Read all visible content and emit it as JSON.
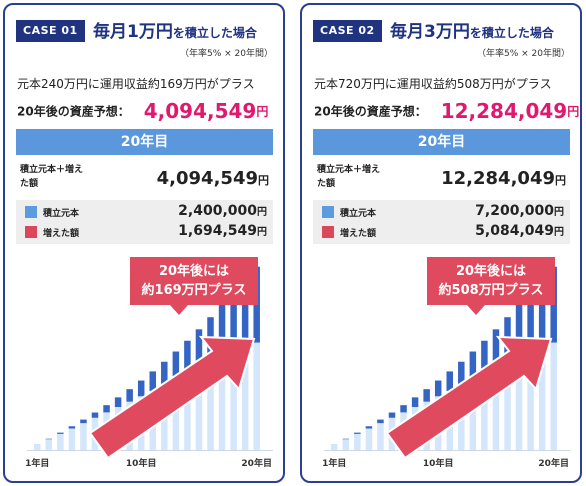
{
  "colors": {
    "principal": "#5b9bde",
    "gain": "#d9495b",
    "principal_bar": "#d3e6fb",
    "gain_bar": "#3565c4"
  },
  "cases": [
    {
      "badge": "CASE 01",
      "title_big": "毎月1万円",
      "title_small": "を積立した場合",
      "subnote": "（年率5% × 20年間）",
      "description": "元本240万円に運用収益約169万円がプラス",
      "forecast_label": "20年後の資産予想：",
      "forecast_value": "4,094,549",
      "yen": "円",
      "year_label": "20年目",
      "total_label": "積立元本＋増えた額",
      "total_value": "4,094,549",
      "principal_label": "積立元本",
      "principal_value": "2,400,000",
      "gain_label": "増えた額",
      "gain_value": "1,694,549",
      "callout": "20年後には\n約169万円プラス",
      "x_ticks": [
        "1年目",
        "10年目",
        "20年目"
      ]
    },
    {
      "badge": "CASE 02",
      "title_big": "毎月3万円",
      "title_small": "を積立した場合",
      "subnote": "（年率5% × 20年間）",
      "description": "元本720万円に運用収益約508万円がプラス",
      "forecast_label": "20年後の資産予想：",
      "forecast_value": "12,284,049",
      "yen": "円",
      "year_label": "20年目",
      "total_label": "積立元本＋増えた額",
      "total_value": "12,284,049",
      "principal_label": "積立元本",
      "principal_value": "7,200,000",
      "gain_label": "増えた額",
      "gain_value": "5,084,049",
      "callout": "20年後には\n約508万円プラス",
      "x_ticks": [
        "1年目",
        "10年目",
        "20年目"
      ]
    }
  ],
  "chart_data": [
    {
      "type": "bar",
      "stacked": true,
      "categories": [
        "1",
        "2",
        "3",
        "4",
        "5",
        "6",
        "7",
        "8",
        "9",
        "10",
        "11",
        "12",
        "13",
        "14",
        "15",
        "16",
        "17",
        "18",
        "19",
        "20"
      ],
      "series": [
        {
          "name": "積立元本",
          "values": [
            12,
            24,
            36,
            48,
            60,
            72,
            84,
            96,
            108,
            120,
            132,
            144,
            156,
            168,
            180,
            192,
            204,
            216,
            228,
            240
          ]
        },
        {
          "name": "増えた額",
          "values": [
            0.3,
            1.2,
            2.8,
            5,
            8,
            11.7,
            16.2,
            21.6,
            27.9,
            35.2,
            43.6,
            53.2,
            64,
            76.1,
            89.6,
            104.7,
            121.4,
            139.9,
            160.3,
            169.5
          ]
        }
      ],
      "x_tick_labels": [
        "1年目",
        "10年目",
        "20年目"
      ],
      "ylim": [
        0,
        420
      ]
    },
    {
      "type": "bar",
      "stacked": true,
      "categories": [
        "1",
        "2",
        "3",
        "4",
        "5",
        "6",
        "7",
        "8",
        "9",
        "10",
        "11",
        "12",
        "13",
        "14",
        "15",
        "16",
        "17",
        "18",
        "19",
        "20"
      ],
      "series": [
        {
          "name": "積立元本",
          "values": [
            36,
            72,
            108,
            144,
            180,
            216,
            252,
            288,
            324,
            360,
            396,
            432,
            468,
            504,
            540,
            576,
            612,
            648,
            684,
            720
          ]
        },
        {
          "name": "増えた額",
          "values": [
            0.9,
            3.6,
            8.4,
            15,
            24,
            35.1,
            48.6,
            64.8,
            83.7,
            105.6,
            130.8,
            159.6,
            192,
            228.3,
            268.8,
            314.1,
            364.2,
            419.7,
            480.9,
            508.4
          ]
        }
      ],
      "x_tick_labels": [
        "1年目",
        "10年目",
        "20年目"
      ],
      "ylim": [
        0,
        1260
      ]
    }
  ]
}
